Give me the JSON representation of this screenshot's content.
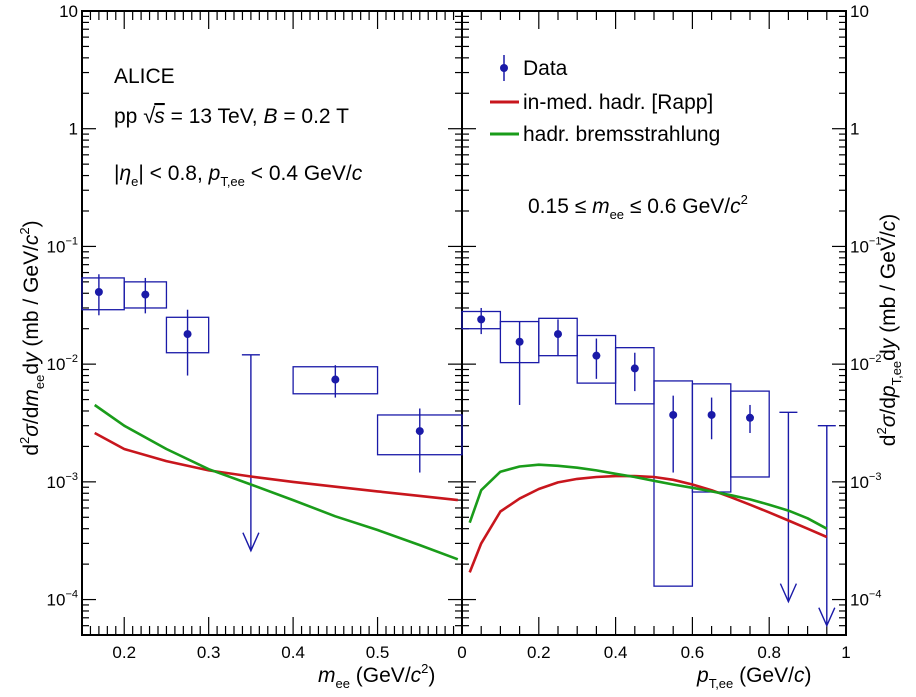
{
  "chart_data": [
    {
      "type": "scatter",
      "panel": "left",
      "xlabel": "m_ee (GeV/c^2)",
      "ylabel": "d^2σ/dm_ee dy (mb / GeV/c^2)",
      "xlim": [
        0.15,
        0.6
      ],
      "ylim": [
        5e-05,
        10
      ],
      "yscale": "log",
      "x_ticks": [
        "0.2",
        "0.3",
        "0.4",
        "0.5"
      ],
      "y_ticks": [
        "10^-4",
        "10^-3",
        "10^-2",
        "10^-1",
        "1",
        "10"
      ],
      "annotations": [
        "ALICE",
        "pp √s = 13 TeV, B = 0.2 T",
        "|η_e| < 0.8, p_T,ee < 0.4 GeV/c"
      ],
      "series": [
        {
          "name": "Data",
          "points": [
            {
              "x": 0.17,
              "y": 0.041,
              "err_lo": 0.026,
              "err_hi": 0.058,
              "sys_x": [
                0.15,
                0.2
              ],
              "sys_y": [
                0.029,
                0.054
              ]
            },
            {
              "x": 0.225,
              "y": 0.039,
              "err_lo": 0.027,
              "err_hi": 0.054,
              "sys_x": [
                0.2,
                0.25
              ],
              "sys_y": [
                0.03,
                0.05
              ]
            },
            {
              "x": 0.275,
              "y": 0.018,
              "err_lo": 0.008,
              "err_hi": 0.029,
              "sys_x": [
                0.25,
                0.3
              ],
              "sys_y": [
                0.0125,
                0.025
              ]
            },
            {
              "x": 0.45,
              "y": 0.0074,
              "err_lo": 0.0052,
              "err_hi": 0.0098,
              "sys_x": [
                0.4,
                0.5
              ],
              "sys_y": [
                0.0056,
                0.0095
              ]
            },
            {
              "x": 0.55,
              "y": 0.0027,
              "err_lo": 0.0012,
              "err_hi": 0.0042,
              "sys_x": [
                0.5,
                0.6
              ],
              "sys_y": [
                0.0017,
                0.0037
              ]
            }
          ],
          "upper_limits": [
            {
              "x": 0.35,
              "y_top": 0.012,
              "y_bottom": 0.00026
            }
          ]
        },
        {
          "name": "in-med. hadr. [Rapp]",
          "color": "#c8161d",
          "x": [
            0.165,
            0.2,
            0.25,
            0.3,
            0.35,
            0.4,
            0.45,
            0.5,
            0.55,
            0.595
          ],
          "y": [
            0.0026,
            0.0019,
            0.0015,
            0.00125,
            0.00111,
            0.001,
            0.00091,
            0.00083,
            0.00076,
            0.0007
          ]
        },
        {
          "name": "hadr. bremsstrahlung",
          "color": "#1a9c1a",
          "x": [
            0.165,
            0.2,
            0.25,
            0.3,
            0.35,
            0.4,
            0.45,
            0.5,
            0.55,
            0.595
          ],
          "y": [
            0.0045,
            0.003,
            0.0019,
            0.00128,
            0.00095,
            0.0007,
            0.00051,
            0.00039,
            0.00029,
            0.00022
          ]
        }
      ]
    },
    {
      "type": "scatter",
      "panel": "right",
      "xlabel": "p_T,ee (GeV/c)",
      "ylabel": "d^2σ/dp_T,ee dy (mb / GeV/c)",
      "xlim": [
        0,
        1
      ],
      "ylim": [
        5e-05,
        10
      ],
      "yscale": "log",
      "x_ticks": [
        "0",
        "0.2",
        "0.4",
        "0.6",
        "0.8",
        "1"
      ],
      "y_ticks": [
        "10^-4",
        "10^-3",
        "10^-2",
        "10^-1",
        "1",
        "10"
      ],
      "annotations": [
        "0.15 ≤ m_ee ≤ 0.6 GeV/c^2"
      ],
      "legend": [
        "Data",
        "in-med. hadr. [Rapp]",
        "hadr. bremsstrahlung"
      ],
      "series": [
        {
          "name": "Data",
          "points": [
            {
              "x": 0.05,
              "y": 0.024,
              "err_lo": 0.018,
              "err_hi": 0.03,
              "sys_x": [
                0.0,
                0.1
              ],
              "sys_y": [
                0.02,
                0.028
              ]
            },
            {
              "x": 0.15,
              "y": 0.0155,
              "err_lo": 0.0045,
              "err_hi": 0.023,
              "sys_x": [
                0.1,
                0.2
              ],
              "sys_y": [
                0.0103,
                0.023
              ]
            },
            {
              "x": 0.25,
              "y": 0.018,
              "err_lo": 0.0118,
              "err_hi": 0.024,
              "sys_x": [
                0.2,
                0.3
              ],
              "sys_y": [
                0.0118,
                0.0245
              ]
            },
            {
              "x": 0.35,
              "y": 0.0118,
              "err_lo": 0.0075,
              "err_hi": 0.0165,
              "sys_x": [
                0.3,
                0.4
              ],
              "sys_y": [
                0.0069,
                0.0175
              ]
            },
            {
              "x": 0.45,
              "y": 0.0092,
              "err_lo": 0.0059,
              "err_hi": 0.0125,
              "sys_x": [
                0.4,
                0.5
              ],
              "sys_y": [
                0.0046,
                0.0138
              ]
            },
            {
              "x": 0.55,
              "y": 0.0037,
              "err_lo": 0.0012,
              "err_hi": 0.0054,
              "sys_x": [
                0.5,
                0.6
              ],
              "sys_y": [
                0.00013,
                0.0072
              ]
            },
            {
              "x": 0.65,
              "y": 0.0037,
              "err_lo": 0.0023,
              "err_hi": 0.0052,
              "sys_x": [
                0.6,
                0.7
              ],
              "sys_y": [
                0.00082,
                0.0068
              ]
            },
            {
              "x": 0.75,
              "y": 0.0035,
              "err_lo": 0.0026,
              "err_hi": 0.0045,
              "sys_x": [
                0.7,
                0.8
              ],
              "sys_y": [
                0.0011,
                0.0059
              ]
            }
          ],
          "upper_limits": [
            {
              "x": 0.85,
              "y_top": 0.0039,
              "y_bottom": 9.6e-05
            },
            {
              "x": 0.95,
              "y_top": 0.003,
              "y_bottom": 6e-05
            }
          ]
        },
        {
          "name": "in-med. hadr. [Rapp]",
          "color": "#c8161d",
          "x": [
            0.02,
            0.05,
            0.1,
            0.15,
            0.2,
            0.25,
            0.3,
            0.35,
            0.4,
            0.45,
            0.5,
            0.55,
            0.6,
            0.65,
            0.7,
            0.75,
            0.8,
            0.85,
            0.9,
            0.95
          ],
          "y": [
            0.00017,
            0.0003,
            0.00056,
            0.00072,
            0.00087,
            0.00099,
            0.00106,
            0.0011,
            0.00112,
            0.00112,
            0.0011,
            0.00104,
            0.00095,
            0.00085,
            0.00074,
            0.00064,
            0.00055,
            0.00047,
            0.0004,
            0.00034
          ]
        },
        {
          "name": "hadr. bremsstrahlung",
          "color": "#1a9c1a",
          "x": [
            0.02,
            0.05,
            0.1,
            0.15,
            0.2,
            0.25,
            0.3,
            0.35,
            0.4,
            0.45,
            0.5,
            0.55,
            0.6,
            0.65,
            0.7,
            0.75,
            0.8,
            0.85,
            0.9,
            0.95
          ],
          "y": [
            0.00045,
            0.00085,
            0.00122,
            0.00135,
            0.0014,
            0.00137,
            0.00132,
            0.00125,
            0.00117,
            0.0011,
            0.00102,
            0.00095,
            0.00089,
            0.00083,
            0.00077,
            0.00071,
            0.00064,
            0.00057,
            0.00049,
            0.0004
          ]
        }
      ]
    }
  ]
}
